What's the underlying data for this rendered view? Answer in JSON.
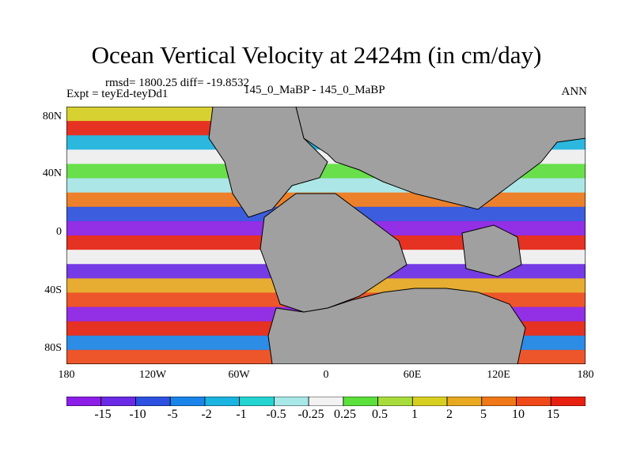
{
  "chart_data": {
    "type": "heatmap",
    "title": "Ocean Vertical Velocity at 2424m (in cm/day)",
    "stats_text": "rmsd= 1800.25 diff= -19.8532",
    "expt_text": "Expt = teyEd-teyDd1",
    "subtitle": "145_0_MaBP - 145_0_MaBP",
    "season": "ANN",
    "xlim": [
      -180,
      180
    ],
    "ylim": [
      -90,
      90
    ],
    "x_ticks": [
      {
        "value": -180,
        "label": "180"
      },
      {
        "value": -120,
        "label": "120W"
      },
      {
        "value": -60,
        "label": "60W"
      },
      {
        "value": 0,
        "label": "0"
      },
      {
        "value": 60,
        "label": "60E"
      },
      {
        "value": 120,
        "label": "120E"
      },
      {
        "value": 180,
        "label": "180"
      }
    ],
    "y_ticks": [
      {
        "value": 80,
        "label": "80N"
      },
      {
        "value": 40,
        "label": "40N"
      },
      {
        "value": 0,
        "label": "0"
      },
      {
        "value": -40,
        "label": "40S"
      },
      {
        "value": -80,
        "label": "80S"
      }
    ],
    "colorbar": {
      "levels": [
        "-15",
        "-10",
        "-5",
        "-2",
        "-1",
        "-0.5",
        "-0.25",
        "0.25",
        "0.5",
        "1",
        "2",
        "5",
        "10",
        "15"
      ],
      "colors": [
        "#8c1ee8",
        "#6a2ae6",
        "#2c50e0",
        "#1a84e8",
        "#1ab4e0",
        "#24d4d0",
        "#a8e8e8",
        "#f2f2f2",
        "#5ce03c",
        "#a8dc3c",
        "#d8d020",
        "#e8a820",
        "#f07818",
        "#f04818",
        "#e82010"
      ]
    },
    "land_color": "#a0a0a0"
  }
}
